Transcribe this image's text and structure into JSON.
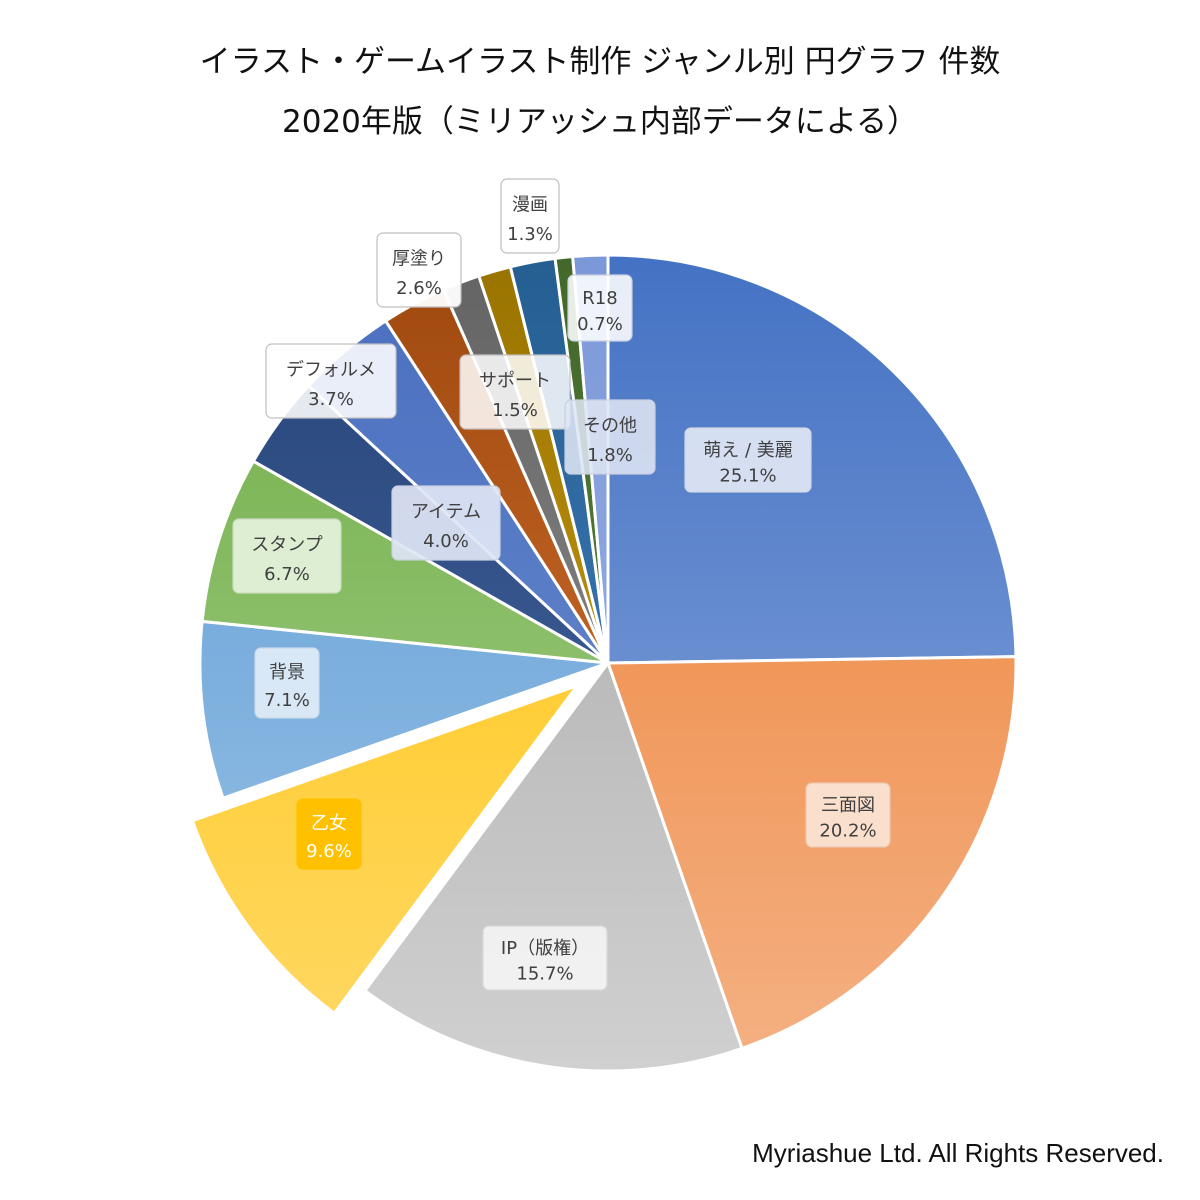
{
  "header": {
    "title_line1": "イラスト・ゲームイラスト制作 ジャンル別 円グラフ 件数",
    "title_line2": "2020年版（ミリアッシュ内部データによる）"
  },
  "footer": {
    "copyright": "Myriashue Ltd. All Rights Reserved."
  },
  "chart_data": {
    "type": "pie",
    "title": "イラスト・ゲームイラスト制作 ジャンル別 円グラフ 件数",
    "subtitle": "2020年版（ミリアッシュ内部データによる）",
    "start": "12 o'clock, clockwise",
    "exploded": "乙女",
    "slices": [
      {
        "label": "萌え / 美麗",
        "value": 25.1,
        "pct_label": "25.1%",
        "color_top": "#4472c4",
        "color_bottom": "#8faadc"
      },
      {
        "label": "三面図",
        "value": 20.2,
        "pct_label": "20.2%",
        "color_top": "#ed7d31",
        "color_bottom": "#f4b183"
      },
      {
        "label": "IP（版権）",
        "value": 15.7,
        "pct_label": "15.7%",
        "color_top": "#a5a5a5",
        "color_bottom": "#d0d0d0"
      },
      {
        "label": "乙女",
        "value": 9.6,
        "pct_label": "9.6%",
        "color_top": "#ffc000",
        "color_bottom": "#ffd966"
      },
      {
        "label": "背景",
        "value": 7.1,
        "pct_label": "7.1%",
        "color_top": "#5b9bd5",
        "color_bottom": "#9dc3e6"
      },
      {
        "label": "スタンプ",
        "value": 6.7,
        "pct_label": "6.7%",
        "color_top": "#70ad47",
        "color_bottom": "#a9d18e"
      },
      {
        "label": "デフォルメ",
        "value": 3.7,
        "pct_label": "3.7%",
        "color_top": "#264478",
        "color_bottom": "#4a6aa5"
      },
      {
        "label": "アイテム",
        "value": 4.0,
        "pct_label": "4.0%",
        "color_top": "#4a6fbf",
        "color_bottom": "#6f8fd0"
      },
      {
        "label": "厚塗り",
        "value": 2.6,
        "pct_label": "2.6%",
        "color_top": "#9e480e",
        "color_bottom": "#e07b39"
      },
      {
        "label": "サポート",
        "value": 1.5,
        "pct_label": "1.5%",
        "color_top": "#636363",
        "color_bottom": "#9a9a9a"
      },
      {
        "label": "漫画",
        "value": 1.3,
        "pct_label": "1.3%",
        "color_top": "#997300",
        "color_bottom": "#d9a81a"
      },
      {
        "label": "その他",
        "value": 1.8,
        "pct_label": "1.8%",
        "color_top": "#255e91",
        "color_bottom": "#4a86c8"
      },
      {
        "label": "R18",
        "value": 0.7,
        "pct_label": "0.7%",
        "color_top": "#43682b",
        "color_bottom": "#5a8a3a"
      },
      {
        "label": "",
        "value": 1.4,
        "pct_label": "",
        "color_top": "#7b98d8",
        "color_bottom": "#a3b8e6"
      }
    ]
  }
}
